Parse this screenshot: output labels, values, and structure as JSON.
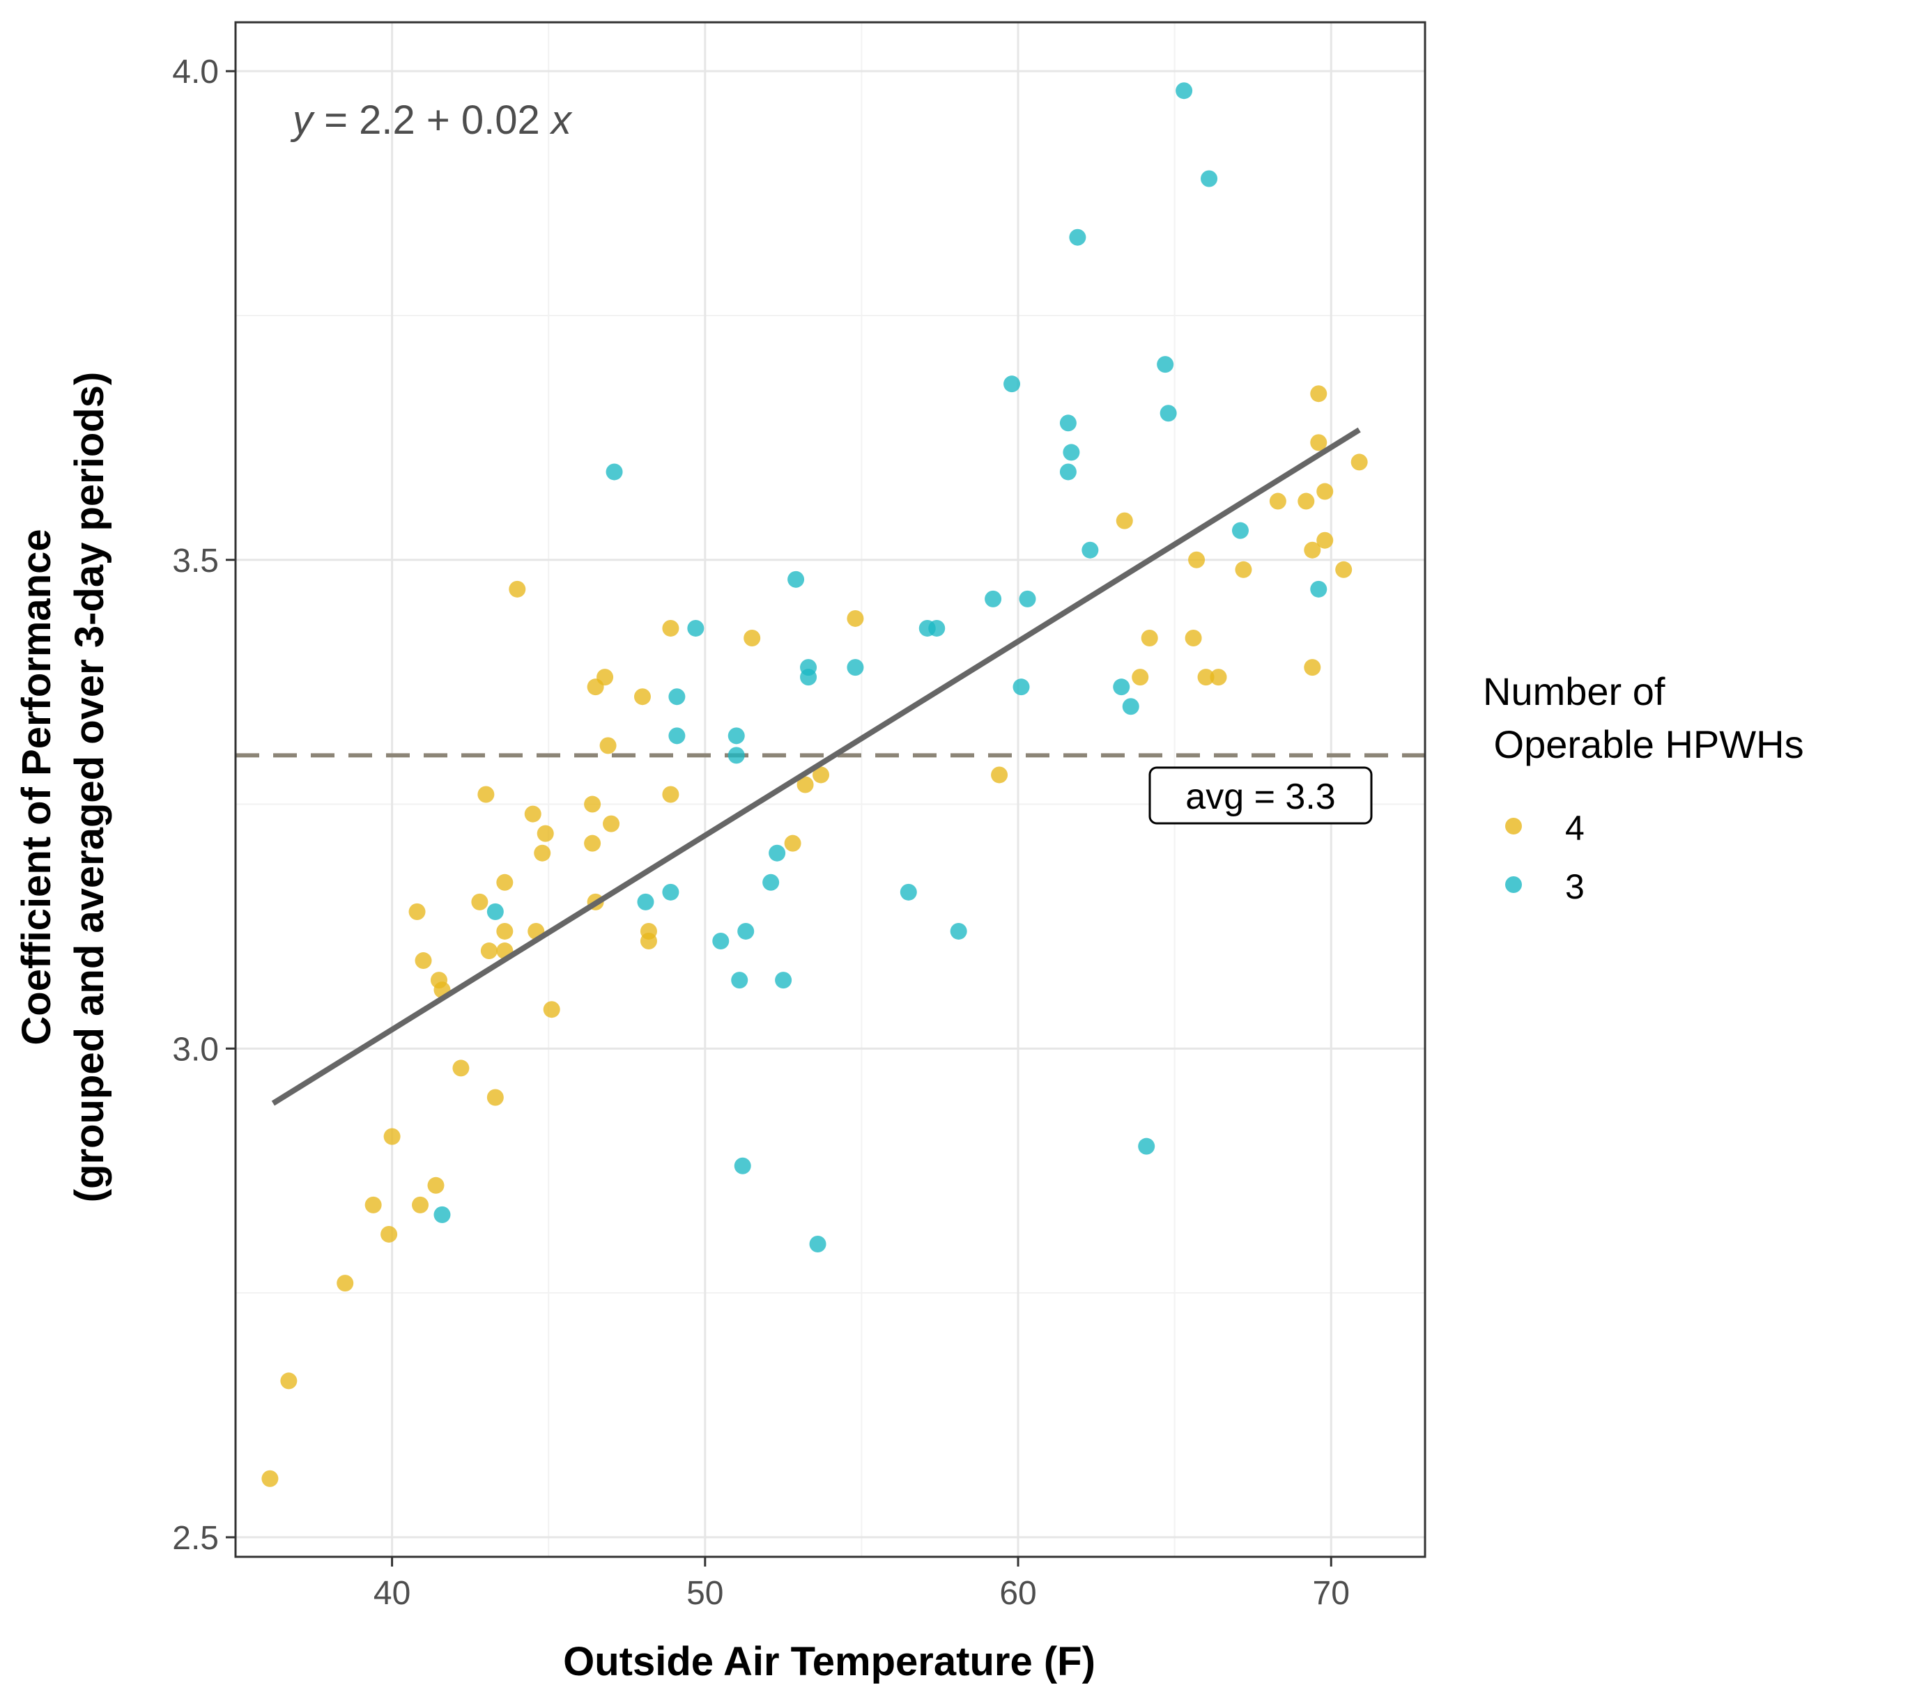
{
  "chart_data": {
    "type": "scatter",
    "xlabel": "Outside Air Temperature (F)",
    "ylabel_line1": "Coefficient of Performance",
    "ylabel_line2": "(grouped and averaged over 3-day periods)",
    "xlim": [
      35,
      73
    ],
    "ylim": [
      2.48,
      4.05
    ],
    "x_ticks": [
      40,
      50,
      60,
      70
    ],
    "y_ticks": [
      2.5,
      3.0,
      3.5,
      4.0
    ],
    "x_tick_labels": [
      "40",
      "50",
      "60",
      "70"
    ],
    "y_tick_labels": [
      "2.5",
      "3.0",
      "3.5",
      "4.0"
    ],
    "grid": true,
    "legend": {
      "title_line1": "Number of",
      "title_line2": " Operable HPWHs",
      "placement": "right",
      "labels": [
        "4",
        "3"
      ]
    },
    "regression": {
      "intercept": 2.2,
      "slope": 0.02,
      "x_range": [
        36.2,
        70.9
      ],
      "y_range": [
        2.944,
        3.633
      ],
      "color": "#666666",
      "equation": {
        "y": "y",
        "eq": " = 2.2",
        "plus": " + ",
        "coef": "0.02 ",
        "x": "x"
      }
    },
    "reference_line": {
      "y": 3.3,
      "label": "avg = 3.3",
      "color": "#8c8577"
    },
    "series": [
      {
        "name": "4",
        "color": "#e8b71c",
        "points": [
          [
            36.1,
            2.56
          ],
          [
            36.7,
            2.66
          ],
          [
            38.5,
            2.76
          ],
          [
            39.4,
            2.84
          ],
          [
            39.9,
            2.81
          ],
          [
            40.0,
            2.91
          ],
          [
            40.8,
            3.14
          ],
          [
            40.9,
            2.84
          ],
          [
            41.0,
            3.09
          ],
          [
            41.4,
            2.86
          ],
          [
            41.5,
            3.07
          ],
          [
            41.6,
            3.06
          ],
          [
            42.2,
            2.98
          ],
          [
            42.8,
            3.15
          ],
          [
            43.0,
            3.26
          ],
          [
            43.1,
            3.1
          ],
          [
            43.3,
            2.95
          ],
          [
            43.6,
            3.17
          ],
          [
            43.6,
            3.12
          ],
          [
            43.6,
            3.1
          ],
          [
            44.0,
            3.47
          ],
          [
            44.5,
            3.24
          ],
          [
            44.6,
            3.12
          ],
          [
            44.8,
            3.2
          ],
          [
            44.9,
            3.22
          ],
          [
            45.1,
            3.04
          ],
          [
            46.4,
            3.25
          ],
          [
            46.4,
            3.21
          ],
          [
            46.5,
            3.37
          ],
          [
            46.5,
            3.15
          ],
          [
            46.8,
            3.38
          ],
          [
            46.9,
            3.31
          ],
          [
            47.0,
            3.23
          ],
          [
            48.0,
            3.36
          ],
          [
            48.2,
            3.12
          ],
          [
            48.2,
            3.11
          ],
          [
            48.9,
            3.26
          ],
          [
            48.9,
            3.43
          ],
          [
            51.5,
            3.42
          ],
          [
            52.8,
            3.21
          ],
          [
            53.2,
            3.27
          ],
          [
            53.7,
            3.28
          ],
          [
            54.8,
            3.44
          ],
          [
            59.4,
            3.28
          ],
          [
            63.4,
            3.54
          ],
          [
            63.9,
            3.38
          ],
          [
            64.2,
            3.42
          ],
          [
            65.6,
            3.42
          ],
          [
            65.7,
            3.5
          ],
          [
            66.0,
            3.38
          ],
          [
            66.4,
            3.38
          ],
          [
            67.2,
            3.49
          ],
          [
            68.3,
            3.56
          ],
          [
            69.2,
            3.56
          ],
          [
            69.4,
            3.51
          ],
          [
            69.4,
            3.39
          ],
          [
            69.6,
            3.67
          ],
          [
            69.6,
            3.62
          ],
          [
            69.8,
            3.57
          ],
          [
            69.8,
            3.52
          ],
          [
            70.4,
            3.49
          ],
          [
            70.9,
            3.6
          ]
        ]
      },
      {
        "name": "3",
        "color": "#1cb8c4",
        "points": [
          [
            41.6,
            2.83
          ],
          [
            43.3,
            3.14
          ],
          [
            47.1,
            3.59
          ],
          [
            48.1,
            3.15
          ],
          [
            48.9,
            3.16
          ],
          [
            49.1,
            3.36
          ],
          [
            49.1,
            3.32
          ],
          [
            49.7,
            3.43
          ],
          [
            50.5,
            3.11
          ],
          [
            51.0,
            3.32
          ],
          [
            51.0,
            3.3
          ],
          [
            51.1,
            3.07
          ],
          [
            51.2,
            2.88
          ],
          [
            51.3,
            3.12
          ],
          [
            52.1,
            3.17
          ],
          [
            52.3,
            3.2
          ],
          [
            52.5,
            3.07
          ],
          [
            52.9,
            3.48
          ],
          [
            53.3,
            3.39
          ],
          [
            53.3,
            3.38
          ],
          [
            53.6,
            2.8
          ],
          [
            54.8,
            3.39
          ],
          [
            56.5,
            3.16
          ],
          [
            57.1,
            3.43
          ],
          [
            57.4,
            3.43
          ],
          [
            58.1,
            3.12
          ],
          [
            59.2,
            3.46
          ],
          [
            59.8,
            3.68
          ],
          [
            60.1,
            3.37
          ],
          [
            60.3,
            3.46
          ],
          [
            61.6,
            3.59
          ],
          [
            61.6,
            3.64
          ],
          [
            61.7,
            3.61
          ],
          [
            61.9,
            3.83
          ],
          [
            62.3,
            3.51
          ],
          [
            63.3,
            3.37
          ],
          [
            63.6,
            3.35
          ],
          [
            64.1,
            2.9
          ],
          [
            64.7,
            3.7
          ],
          [
            64.8,
            3.65
          ],
          [
            65.3,
            3.98
          ],
          [
            66.1,
            3.89
          ],
          [
            67.1,
            3.53
          ],
          [
            69.6,
            3.47
          ]
        ]
      }
    ]
  }
}
